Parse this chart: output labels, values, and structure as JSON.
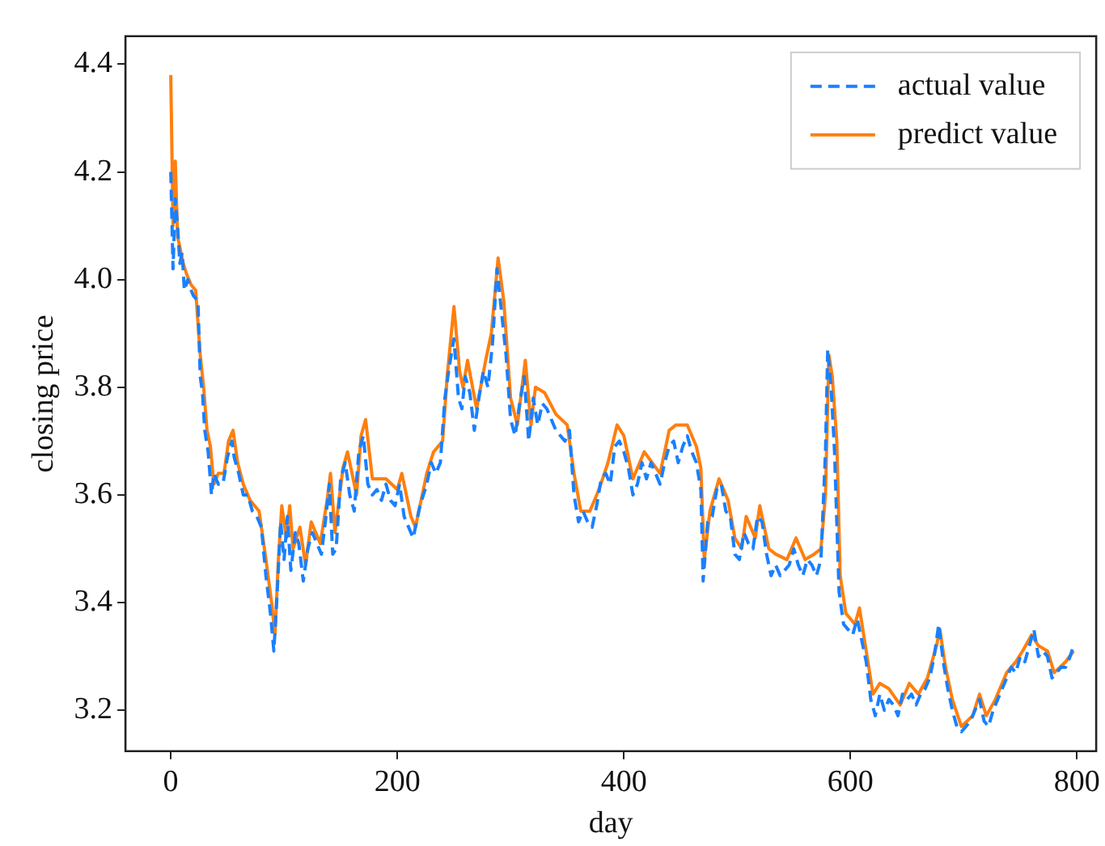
{
  "chart_data": {
    "type": "line",
    "xlabel": "day",
    "ylabel": "closing price",
    "xlim": [
      -40,
      817
    ],
    "ylim": [
      3.124,
      4.452
    ],
    "xticks": [
      0,
      200,
      400,
      600,
      800
    ],
    "yticks": [
      3.2,
      3.4,
      3.6,
      3.8,
      {
        "value": 4,
        "label": "4.0"
      },
      4.2,
      4.4
    ],
    "grid": false,
    "legend": "top right",
    "marker": "none",
    "series": [
      {
        "name": "actual value",
        "color": "#1a80ff",
        "line_style": "dashed",
        "x": [
          0,
          2,
          4,
          6,
          8,
          10,
          12,
          15,
          18,
          20,
          24,
          26,
          28,
          30,
          33,
          36,
          38,
          42,
          46,
          50,
          54,
          56,
          60,
          64,
          68,
          72,
          76,
          80,
          84,
          88,
          91,
          94,
          97,
          100,
          103,
          106,
          110,
          113,
          117,
          121,
          125,
          129,
          133,
          137,
          140,
          143,
          146,
          150,
          154,
          158,
          162,
          166,
          170,
          174,
          178,
          182,
          186,
          190,
          194,
          198,
          202,
          206,
          210,
          214,
          220,
          226,
          230,
          234,
          238,
          242,
          246,
          250,
          254,
          257,
          260,
          264,
          268,
          272,
          276,
          280,
          284,
          288,
          292,
          296,
          300,
          304,
          308,
          312,
          316,
          320,
          324,
          328,
          332,
          336,
          340,
          344,
          348,
          352,
          356,
          360,
          364,
          368,
          372,
          376,
          380,
          384,
          388,
          392,
          396,
          400,
          404,
          408,
          412,
          416,
          420,
          424,
          428,
          432,
          436,
          440,
          444,
          448,
          452,
          456,
          460,
          464,
          468,
          470,
          474,
          478,
          482,
          486,
          490,
          494,
          498,
          502,
          506,
          510,
          514,
          518,
          522,
          526,
          530,
          534,
          538,
          542,
          546,
          550,
          554,
          558,
          562,
          566,
          570,
          574,
          578,
          580,
          583,
          586,
          590,
          594,
          598,
          602,
          606,
          610,
          614,
          618,
          622,
          626,
          630,
          634,
          638,
          642,
          646,
          650,
          654,
          658,
          662,
          666,
          670,
          674,
          678,
          682,
          686,
          690,
          694,
          698,
          702,
          706,
          710,
          714,
          718,
          722,
          726,
          730,
          734,
          738,
          742,
          746,
          750,
          754,
          758,
          762,
          766,
          770,
          774,
          778,
          782,
          786,
          790,
          794,
          797
        ],
        "values": [
          4.2,
          4.02,
          4.15,
          4.1,
          4.03,
          4.05,
          3.98,
          4.0,
          3.98,
          3.97,
          3.96,
          3.82,
          3.79,
          3.72,
          3.68,
          3.6,
          3.64,
          3.62,
          3.62,
          3.67,
          3.7,
          3.67,
          3.64,
          3.6,
          3.6,
          3.57,
          3.56,
          3.54,
          3.45,
          3.38,
          3.31,
          3.42,
          3.55,
          3.48,
          3.56,
          3.46,
          3.53,
          3.51,
          3.44,
          3.5,
          3.53,
          3.51,
          3.49,
          3.56,
          3.62,
          3.49,
          3.5,
          3.63,
          3.66,
          3.6,
          3.57,
          3.68,
          3.71,
          3.62,
          3.6,
          3.61,
          3.59,
          3.62,
          3.59,
          3.58,
          3.62,
          3.56,
          3.54,
          3.52,
          3.58,
          3.62,
          3.66,
          3.64,
          3.66,
          3.78,
          3.84,
          3.89,
          3.78,
          3.76,
          3.82,
          3.79,
          3.72,
          3.78,
          3.83,
          3.8,
          3.88,
          4.02,
          3.94,
          3.86,
          3.74,
          3.71,
          3.77,
          3.82,
          3.7,
          3.78,
          3.73,
          3.77,
          3.76,
          3.74,
          3.72,
          3.71,
          3.7,
          3.72,
          3.6,
          3.55,
          3.57,
          3.55,
          3.54,
          3.58,
          3.63,
          3.64,
          3.62,
          3.69,
          3.7,
          3.68,
          3.65,
          3.6,
          3.62,
          3.66,
          3.63,
          3.66,
          3.64,
          3.62,
          3.66,
          3.69,
          3.7,
          3.66,
          3.69,
          3.71,
          3.68,
          3.66,
          3.61,
          3.44,
          3.55,
          3.56,
          3.61,
          3.62,
          3.57,
          3.56,
          3.49,
          3.48,
          3.53,
          3.51,
          3.5,
          3.56,
          3.55,
          3.49,
          3.45,
          3.47,
          3.45,
          3.46,
          3.47,
          3.5,
          3.47,
          3.45,
          3.48,
          3.47,
          3.45,
          3.48,
          3.68,
          3.87,
          3.8,
          3.68,
          3.42,
          3.36,
          3.35,
          3.34,
          3.37,
          3.33,
          3.29,
          3.22,
          3.19,
          3.23,
          3.2,
          3.22,
          3.21,
          3.19,
          3.23,
          3.22,
          3.23,
          3.21,
          3.23,
          3.24,
          3.26,
          3.3,
          3.36,
          3.29,
          3.24,
          3.2,
          3.17,
          3.16,
          3.17,
          3.18,
          3.2,
          3.22,
          3.18,
          3.17,
          3.2,
          3.22,
          3.24,
          3.26,
          3.28,
          3.27,
          3.3,
          3.29,
          3.32,
          3.35,
          3.3,
          3.31,
          3.3,
          3.26,
          3.27,
          3.28,
          3.28,
          3.3,
          3.32
        ]
      },
      {
        "name": "predict value",
        "color": "#ff7f0e",
        "line_style": "solid",
        "x": [
          0,
          2,
          4,
          6,
          8,
          11,
          14,
          18,
          22,
          26,
          29,
          32,
          35,
          38,
          42,
          47,
          51,
          55,
          59,
          64,
          70,
          78,
          84,
          89,
          92,
          95,
          98,
          102,
          105,
          108,
          114,
          119,
          124,
          132,
          138,
          141,
          145,
          152,
          156,
          164,
          168,
          172,
          178,
          190,
          200,
          204,
          212,
          216,
          226,
          232,
          240,
          244,
          250,
          255,
          258,
          262,
          270,
          278,
          283,
          289,
          294,
          300,
          306,
          313,
          318,
          322,
          330,
          340,
          350,
          356,
          362,
          370,
          378,
          386,
          394,
          400,
          408,
          418,
          432,
          440,
          446,
          456,
          464,
          468,
          471,
          476,
          484,
          492,
          498,
          504,
          508,
          516,
          520,
          528,
          534,
          544,
          552,
          560,
          568,
          574,
          578,
          581,
          584,
          588,
          591,
          596,
          604,
          608,
          614,
          620,
          626,
          634,
          644,
          652,
          660,
          668,
          676,
          679,
          684,
          690,
          698,
          708,
          714,
          720,
          728,
          738,
          746,
          752,
          760,
          766,
          774,
          780,
          790,
          797
        ],
        "values": [
          4.38,
          4.1,
          4.22,
          4.08,
          4.06,
          4.03,
          4.01,
          3.99,
          3.98,
          3.86,
          3.8,
          3.72,
          3.69,
          3.62,
          3.64,
          3.64,
          3.7,
          3.72,
          3.66,
          3.62,
          3.59,
          3.57,
          3.48,
          3.4,
          3.34,
          3.48,
          3.58,
          3.52,
          3.58,
          3.5,
          3.54,
          3.47,
          3.55,
          3.51,
          3.59,
          3.64,
          3.53,
          3.65,
          3.68,
          3.6,
          3.71,
          3.74,
          3.63,
          3.63,
          3.61,
          3.64,
          3.56,
          3.54,
          3.64,
          3.68,
          3.7,
          3.82,
          3.95,
          3.83,
          3.8,
          3.85,
          3.76,
          3.85,
          3.9,
          4.04,
          3.96,
          3.78,
          3.73,
          3.85,
          3.73,
          3.8,
          3.79,
          3.75,
          3.73,
          3.64,
          3.57,
          3.57,
          3.61,
          3.66,
          3.73,
          3.71,
          3.63,
          3.68,
          3.64,
          3.72,
          3.73,
          3.73,
          3.69,
          3.65,
          3.48,
          3.57,
          3.63,
          3.59,
          3.52,
          3.5,
          3.56,
          3.52,
          3.58,
          3.5,
          3.49,
          3.48,
          3.52,
          3.48,
          3.49,
          3.5,
          3.6,
          3.86,
          3.82,
          3.7,
          3.45,
          3.38,
          3.36,
          3.39,
          3.31,
          3.23,
          3.25,
          3.24,
          3.21,
          3.25,
          3.23,
          3.26,
          3.32,
          3.35,
          3.28,
          3.22,
          3.17,
          3.19,
          3.23,
          3.19,
          3.22,
          3.27,
          3.29,
          3.31,
          3.34,
          3.32,
          3.31,
          3.27,
          3.29,
          3.31
        ]
      }
    ]
  }
}
